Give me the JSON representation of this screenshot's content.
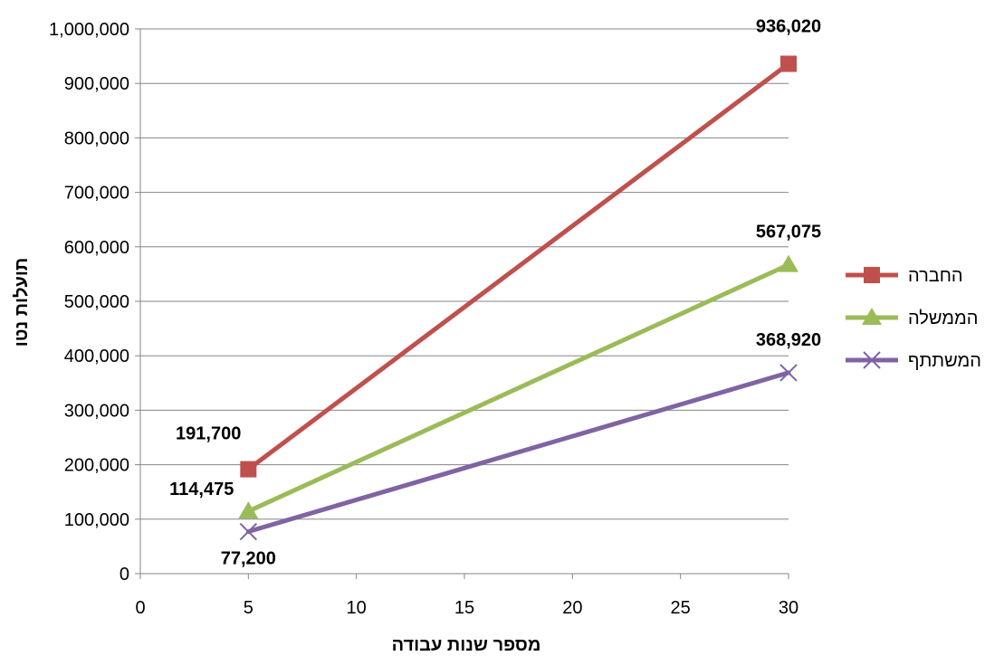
{
  "chart_data": {
    "type": "line",
    "xlabel": "מספר שנות עבודה",
    "ylabel": "תועלות נטו",
    "xlim": [
      0,
      30
    ],
    "ylim": [
      0,
      1000000
    ],
    "x_ticks": [
      0,
      5,
      10,
      15,
      20,
      25,
      30
    ],
    "y_ticks": [
      0,
      100000,
      200000,
      300000,
      400000,
      500000,
      600000,
      700000,
      800000,
      900000,
      1000000
    ],
    "y_tick_labels": [
      "0",
      "100,000",
      "200,000",
      "300,000",
      "400,000",
      "500,000",
      "600,000",
      "700,000",
      "800,000",
      "900,000",
      "1,000,000"
    ],
    "grid": "horizontal",
    "legend_position": "right",
    "series": [
      {
        "name": "החברה",
        "color": "#C0504D",
        "marker": "square",
        "points": [
          {
            "x": 5,
            "y": 191700
          },
          {
            "x": 30,
            "y": 936020
          }
        ],
        "labels": [
          "191,700",
          "936,020"
        ]
      },
      {
        "name": "הממשלה",
        "color": "#9BBB59",
        "marker": "triangle",
        "points": [
          {
            "x": 5,
            "y": 114475
          },
          {
            "x": 30,
            "y": 567075
          }
        ],
        "labels": [
          "114,475",
          "567,075"
        ]
      },
      {
        "name": "המשתתף",
        "color": "#8064A2",
        "marker": "x",
        "points": [
          {
            "x": 5,
            "y": 77200
          },
          {
            "x": 30,
            "y": 368920
          }
        ],
        "labels": [
          "77,200",
          "368,920"
        ]
      }
    ]
  }
}
